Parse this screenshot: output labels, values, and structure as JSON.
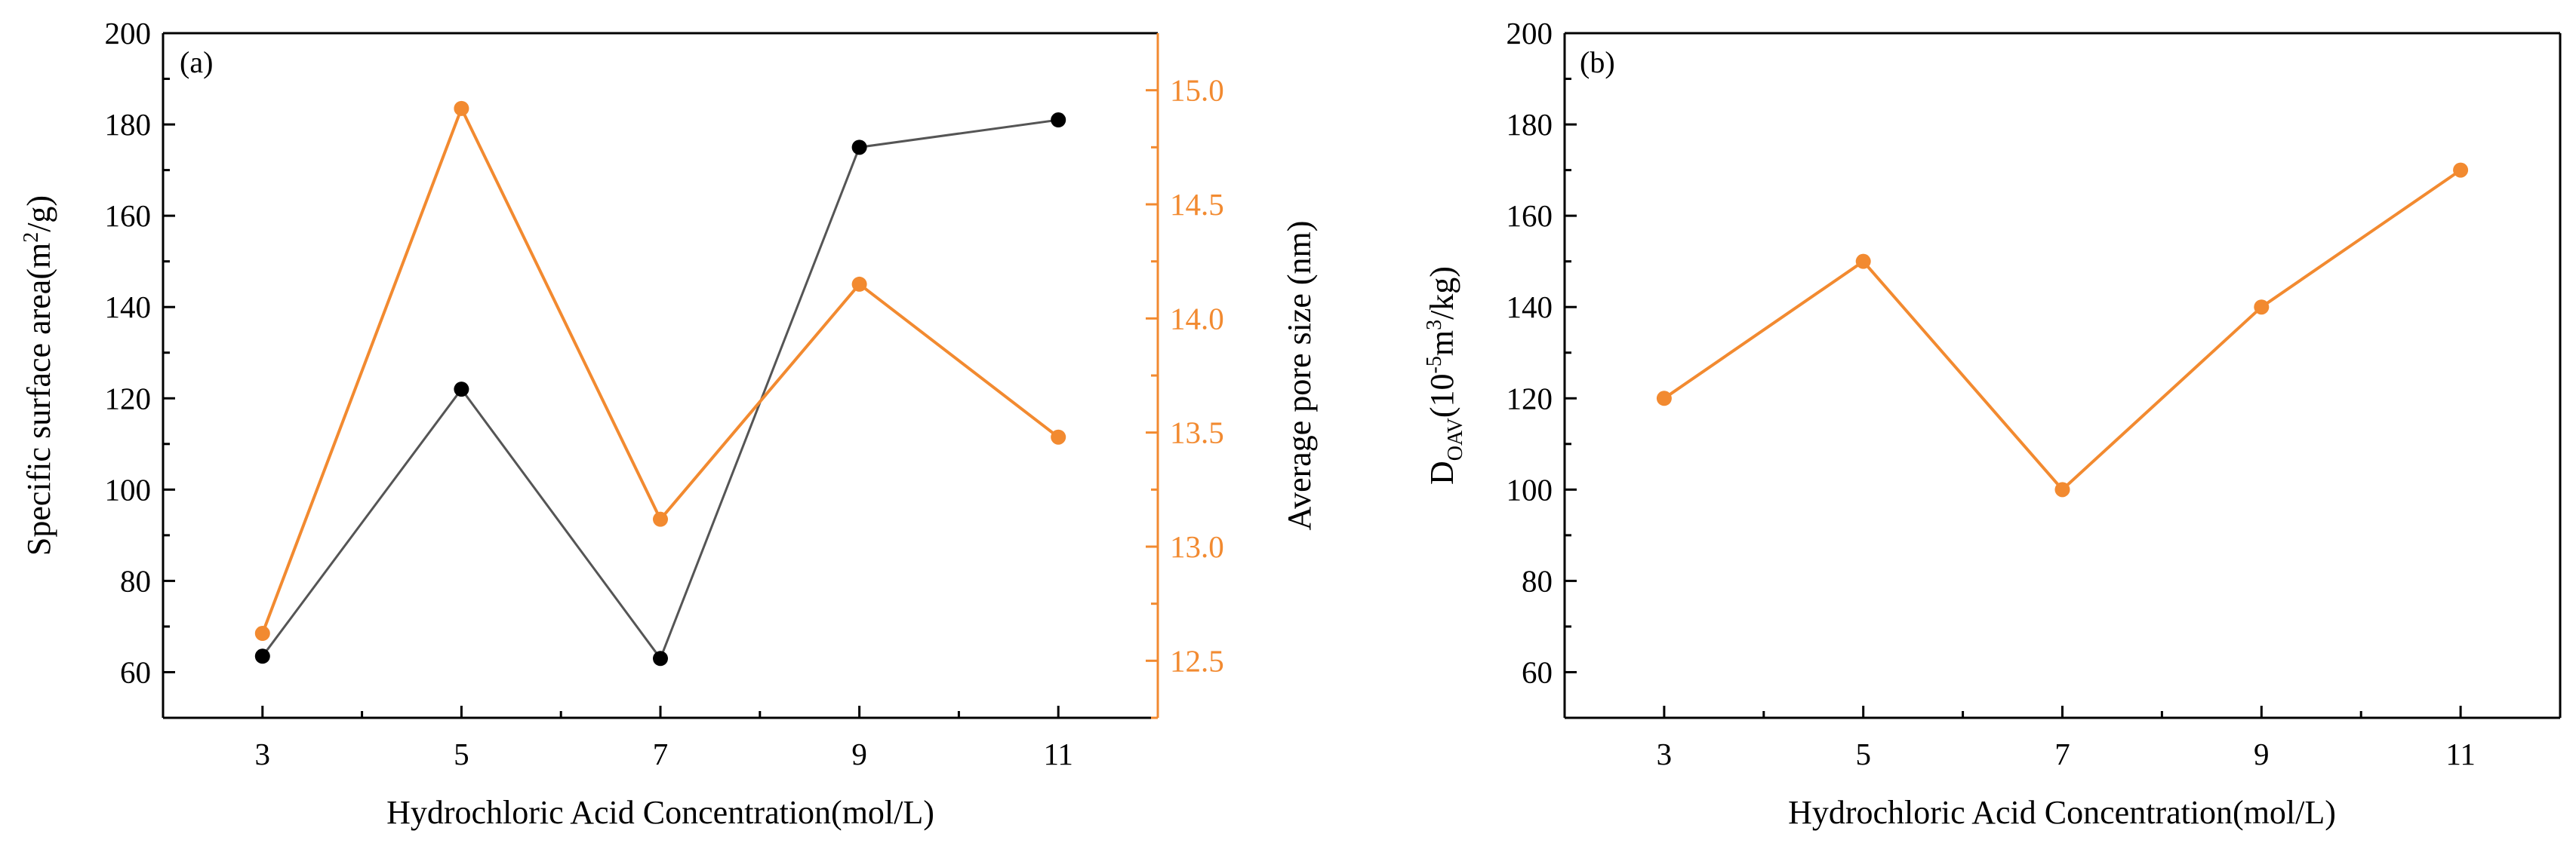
{
  "chart_data": [
    {
      "type": "line",
      "panel_label": "(a)",
      "xlabel": "Hydrochloric Acid Concentration(mol/L)",
      "x": [
        3,
        5,
        7,
        9,
        11
      ],
      "x_ticks": [
        "3",
        "5",
        "7",
        "9",
        "11"
      ],
      "xlim": [
        2,
        12
      ],
      "y_left": {
        "label_main": "Specific surface area(m",
        "label_sup": "2",
        "label_end": "/g)",
        "ylim": [
          50,
          200
        ],
        "ticks": [
          "60",
          "80",
          "100",
          "120",
          "140",
          "160",
          "180",
          "200"
        ],
        "color": "#000000"
      },
      "y_right": {
        "label": "Average pore size (nm)",
        "ylim": [
          12.25,
          15.25
        ],
        "ticks": [
          "12.5",
          "13.0",
          "13.5",
          "14.0",
          "14.5",
          "15.0"
        ],
        "color": "#f28a30"
      },
      "series": [
        {
          "name": "Specific surface area",
          "axis": "left",
          "color": "#555555",
          "marker_color": "#000000",
          "values": [
            63.5,
            122,
            63,
            175,
            181
          ]
        },
        {
          "name": "Average pore size",
          "axis": "right",
          "color": "#f28a30",
          "marker_color": "#f28a30",
          "values": [
            12.62,
            14.92,
            13.12,
            14.15,
            13.48
          ]
        }
      ]
    },
    {
      "type": "line",
      "panel_label": "(b)",
      "xlabel": "Hydrochloric Acid Concentration(mol/L)",
      "x": [
        3,
        5,
        7,
        9,
        11
      ],
      "x_ticks": [
        "3",
        "5",
        "7",
        "9",
        "11"
      ],
      "xlim": [
        2,
        12
      ],
      "y_left": {
        "label_main": "D",
        "label_sub": "OAV",
        "label_mid": "(10",
        "label_sup1": "-5",
        "label_mid2": "m",
        "label_sup2": "3",
        "label_end": "/kg)",
        "ylim": [
          50,
          200
        ],
        "ticks": [
          "60",
          "80",
          "100",
          "120",
          "140",
          "160",
          "180",
          "200"
        ],
        "color": "#000000"
      },
      "series": [
        {
          "name": "DOAV",
          "axis": "left",
          "color": "#f28a30",
          "marker_color": "#f28a30",
          "values": [
            120,
            150,
            100,
            140,
            170
          ]
        }
      ]
    }
  ]
}
